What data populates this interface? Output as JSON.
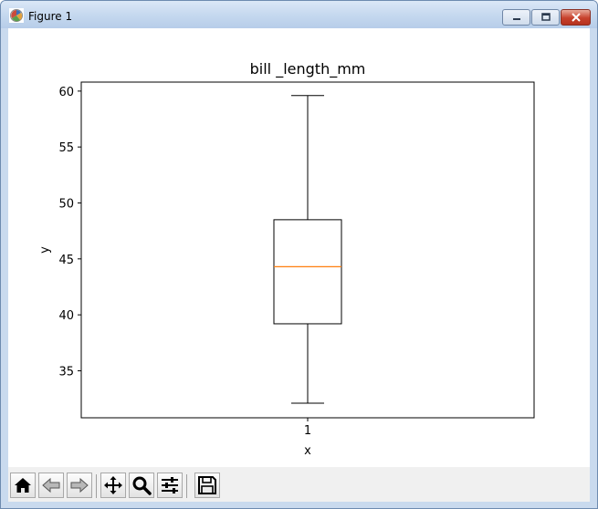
{
  "window": {
    "title": "Figure 1",
    "controls": [
      "minimize",
      "maximize",
      "close"
    ]
  },
  "toolbar": {
    "buttons": [
      {
        "name": "home",
        "icon": "home-icon"
      },
      {
        "name": "back",
        "icon": "back-arrow-icon"
      },
      {
        "name": "forward",
        "icon": "forward-arrow-icon"
      },
      {
        "name": "pan",
        "icon": "move-icon"
      },
      {
        "name": "zoom",
        "icon": "zoom-icon"
      },
      {
        "name": "configure-subplots",
        "icon": "sliders-icon"
      },
      {
        "name": "save",
        "icon": "save-icon"
      }
    ]
  },
  "colors": {
    "median": "#ff7f0e",
    "box_stroke": "#000000",
    "titlebar": "#c9daee",
    "close_button": "#c7412c"
  },
  "chart_data": {
    "type": "box",
    "title": "bill _length_mm",
    "xlabel": "x",
    "ylabel": "y",
    "categories": [
      "1"
    ],
    "boxes": [
      {
        "label": "1",
        "whisker_low": 32.1,
        "q1": 39.2,
        "median": 44.3,
        "q3": 48.5,
        "whisker_high": 59.6
      }
    ],
    "ylim": [
      30.8,
      60.8
    ],
    "yticks": [
      35,
      40,
      45,
      50,
      55,
      60
    ],
    "grid": false,
    "legend": "none"
  }
}
